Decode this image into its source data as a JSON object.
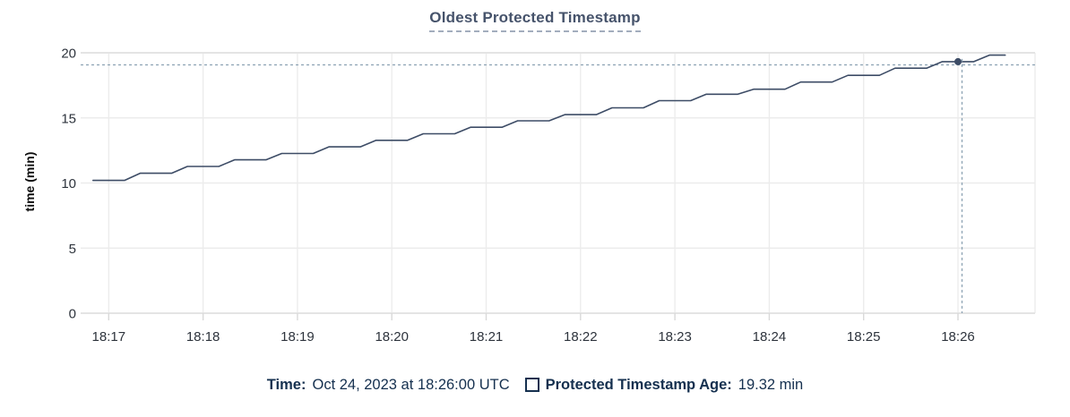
{
  "title": "Oldest Protected Timestamp",
  "tooltip": {
    "time_label": "Time:",
    "time_value": "Oct 24, 2023 at 18:26:00 UTC",
    "series_label": "Protected Timestamp Age:",
    "series_value": "19.32 min",
    "checkbox_checked": false
  },
  "colors": {
    "series_line": "#3d4c66",
    "hover_dot": "#3d4c66",
    "title_text": "#46536b",
    "title_underline": "#a3adbd",
    "legend_text": "#15304f",
    "axis_label_text": "#2d333c",
    "gridline": "#ececec",
    "axis_edge_line": "#e4e4e4",
    "tick_mark": "#d9d9d9",
    "crosshair": "#8ca2b3",
    "background": "#ffffff"
  },
  "chart_data": {
    "type": "line",
    "title": "Oldest Protected Timestamp",
    "xlabel": "",
    "ylabel": "time (min)",
    "ylim": [
      0,
      20
    ],
    "y_ticks": [
      0,
      5,
      10,
      15,
      20
    ],
    "x_ticks": [
      "18:17",
      "18:18",
      "18:19",
      "18:20",
      "18:21",
      "18:22",
      "18:23",
      "18:24",
      "18:25",
      "18:26"
    ],
    "x_window": {
      "start": "18:16:45",
      "end": "18:26:49"
    },
    "grid": true,
    "legend_position": "bottom",
    "series": [
      {
        "name": "Protected Timestamp Age",
        "unit": "min",
        "x": [
          "18:16:50",
          "18:17:00",
          "18:17:10",
          "18:17:20",
          "18:17:30",
          "18:17:40",
          "18:17:50",
          "18:18:00",
          "18:18:10",
          "18:18:20",
          "18:18:30",
          "18:18:40",
          "18:18:50",
          "18:19:00",
          "18:19:10",
          "18:19:20",
          "18:19:30",
          "18:19:40",
          "18:19:50",
          "18:20:00",
          "18:20:10",
          "18:20:20",
          "18:20:30",
          "18:20:40",
          "18:20:50",
          "18:21:00",
          "18:21:10",
          "18:21:20",
          "18:21:30",
          "18:21:40",
          "18:21:50",
          "18:22:00",
          "18:22:10",
          "18:22:20",
          "18:22:30",
          "18:22:40",
          "18:22:50",
          "18:23:00",
          "18:23:10",
          "18:23:20",
          "18:23:30",
          "18:23:40",
          "18:23:50",
          "18:24:00",
          "18:24:10",
          "18:24:20",
          "18:24:30",
          "18:24:40",
          "18:24:50",
          "18:25:00",
          "18:25:10",
          "18:25:20",
          "18:25:30",
          "18:25:40",
          "18:25:50",
          "18:26:00",
          "18:26:10",
          "18:26:20",
          "18:26:30"
        ],
        "values": [
          10.2,
          10.2,
          10.2,
          10.75,
          10.75,
          10.75,
          11.27,
          11.27,
          11.27,
          11.78,
          11.78,
          11.78,
          12.27,
          12.27,
          12.27,
          12.78,
          12.78,
          12.78,
          13.28,
          13.28,
          13.28,
          13.78,
          13.78,
          13.78,
          14.28,
          14.28,
          14.28,
          14.78,
          14.78,
          14.78,
          15.25,
          15.25,
          15.25,
          15.77,
          15.77,
          15.77,
          16.32,
          16.32,
          16.32,
          16.82,
          16.82,
          16.82,
          17.2,
          17.2,
          17.2,
          17.75,
          17.75,
          17.75,
          18.27,
          18.27,
          18.27,
          18.82,
          18.82,
          18.82,
          19.32,
          19.32,
          19.32,
          19.82,
          19.82
        ]
      }
    ],
    "hover": {
      "time": "18:26:00",
      "value": 19.32
    }
  }
}
